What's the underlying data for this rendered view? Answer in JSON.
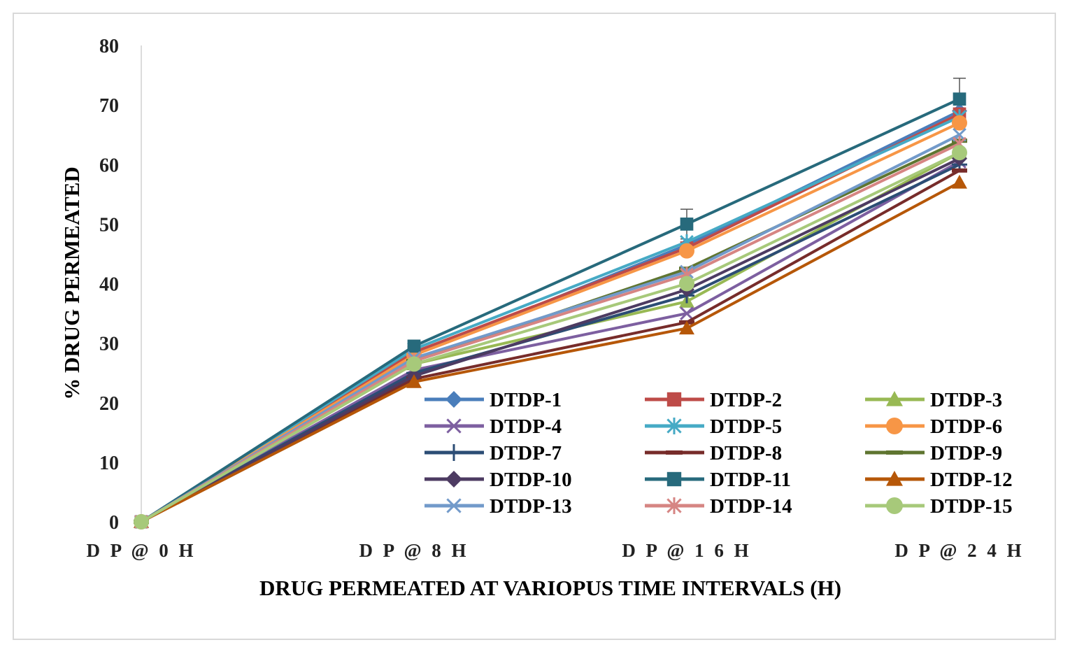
{
  "chart_data": {
    "type": "line",
    "categories": [
      "D P @ 0 H",
      "D P @ 8 H",
      "D P @ 1 6 H",
      "D P @ 2 4 H"
    ],
    "xlabel": "DRUG PERMEATED AT VARIOPUS TIME INTERVALS (H)",
    "ylabel": "% DRUG PERMEATED",
    "ylim": [
      0,
      80
    ],
    "yticks": [
      0,
      10,
      20,
      30,
      40,
      50,
      60,
      70,
      80
    ],
    "legend_position": "lower-right-inside",
    "grid": false,
    "series": [
      {
        "name": "DTDP-1",
        "color": "#4a7ebb",
        "marker": "diamond",
        "values": [
          0,
          28.0,
          46.5,
          69.0
        ]
      },
      {
        "name": "DTDP-2",
        "color": "#be4b48",
        "marker": "square",
        "values": [
          0,
          28.5,
          46.0,
          68.5
        ]
      },
      {
        "name": "DTDP-3",
        "color": "#98b954",
        "marker": "triangle",
        "values": [
          0,
          26.5,
          37.0,
          62.0
        ]
      },
      {
        "name": "DTDP-4",
        "color": "#7d5fa0",
        "marker": "x",
        "values": [
          0,
          25.5,
          35.0,
          60.5
        ]
      },
      {
        "name": "DTDP-5",
        "color": "#46aac5",
        "marker": "asterisk",
        "values": [
          0,
          29.0,
          47.0,
          68.0
        ]
      },
      {
        "name": "DTDP-6",
        "color": "#f79646",
        "marker": "circle",
        "values": [
          0,
          28.0,
          45.5,
          67.0
        ]
      },
      {
        "name": "DTDP-7",
        "color": "#2c4d75",
        "marker": "plus",
        "values": [
          0,
          25.0,
          38.0,
          60.0
        ]
      },
      {
        "name": "DTDP-8",
        "color": "#772c2a",
        "marker": "dash",
        "values": [
          0,
          24.0,
          33.5,
          59.0
        ]
      },
      {
        "name": "DTDP-9",
        "color": "#5f7530",
        "marker": "dash",
        "values": [
          0,
          27.0,
          42.5,
          64.0
        ]
      },
      {
        "name": "DTDP-10",
        "color": "#4d3b62",
        "marker": "diamond",
        "values": [
          0,
          24.5,
          39.0,
          61.0
        ]
      },
      {
        "name": "DTDP-11",
        "color": "#276a7c",
        "marker": "square",
        "values": [
          0,
          29.5,
          50.0,
          71.0
        ]
      },
      {
        "name": "DTDP-12",
        "color": "#b65708",
        "marker": "triangle",
        "values": [
          0,
          23.5,
          32.5,
          57.0
        ]
      },
      {
        "name": "DTDP-13",
        "color": "#729aca",
        "marker": "x",
        "values": [
          0,
          27.5,
          42.0,
          65.0
        ]
      },
      {
        "name": "DTDP-14",
        "color": "#d68583",
        "marker": "asterisk",
        "values": [
          0,
          27.0,
          41.5,
          63.5
        ]
      },
      {
        "name": "DTDP-15",
        "color": "#a7c97a",
        "marker": "circle",
        "values": [
          0,
          26.5,
          40.0,
          62.0
        ]
      }
    ],
    "error_bars": {
      "series": "DTDP-11",
      "values": [
        0,
        1.0,
        2.5,
        3.5
      ]
    }
  }
}
